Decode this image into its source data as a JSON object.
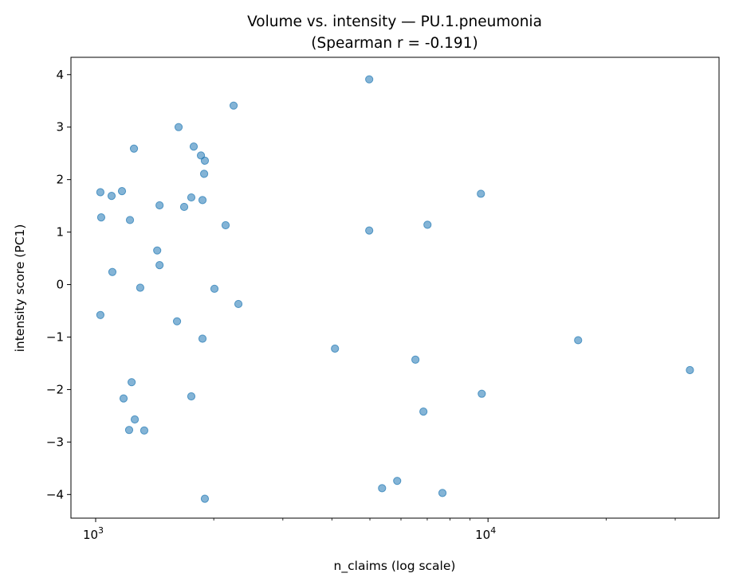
{
  "chart_data": {
    "type": "scatter",
    "title": "Volume vs. intensity — PU.1.pneumonia",
    "subtitle": "(Spearman r = -0.191)",
    "xlabel": "n_claims (log scale)",
    "ylabel": "intensity score (PC1)",
    "xscale": "log",
    "xlim": [
      865,
      38800
    ],
    "ylim": [
      -4.45,
      4.33
    ],
    "xticks": [
      {
        "value": 1000,
        "base": "10",
        "exp": "3"
      },
      {
        "value": 10000,
        "base": "10",
        "exp": "4"
      }
    ],
    "yticks": [
      4,
      3,
      2,
      1,
      0,
      -1,
      -2,
      -3,
      -4
    ],
    "ytick_labels": [
      "4",
      "3",
      "2",
      "1",
      "0",
      "−1",
      "−2",
      "−3",
      "−4"
    ],
    "grid": false,
    "color": "#1f77b4",
    "points": [
      [
        4980,
        3.91
      ],
      [
        2247,
        3.41
      ],
      [
        1627,
        3.0
      ],
      [
        1252,
        2.59
      ],
      [
        1778,
        2.63
      ],
      [
        1855,
        2.46
      ],
      [
        1898,
        2.36
      ],
      [
        1890,
        2.11
      ],
      [
        1028,
        1.76
      ],
      [
        1098,
        1.69
      ],
      [
        1167,
        1.78
      ],
      [
        1753,
        1.66
      ],
      [
        1872,
        1.61
      ],
      [
        1455,
        1.51
      ],
      [
        1681,
        1.48
      ],
      [
        1033,
        1.28
      ],
      [
        1223,
        1.23
      ],
      [
        2144,
        1.13
      ],
      [
        4980,
        1.03
      ],
      [
        7010,
        1.14
      ],
      [
        9590,
        1.73
      ],
      [
        1435,
        0.65
      ],
      [
        1455,
        0.37
      ],
      [
        1103,
        0.24
      ],
      [
        1299,
        -0.06
      ],
      [
        2008,
        -0.08
      ],
      [
        2311,
        -0.37
      ],
      [
        1028,
        -0.58
      ],
      [
        1612,
        -0.7
      ],
      [
        1872,
        -1.03
      ],
      [
        4073,
        -1.22
      ],
      [
        6531,
        -1.43
      ],
      [
        16970,
        -1.06
      ],
      [
        32700,
        -1.63
      ],
      [
        1235,
        -1.86
      ],
      [
        1753,
        -2.13
      ],
      [
        1178,
        -2.17
      ],
      [
        9640,
        -2.08
      ],
      [
        6845,
        -2.42
      ],
      [
        1258,
        -2.57
      ],
      [
        1217,
        -2.77
      ],
      [
        1330,
        -2.78
      ],
      [
        5370,
        -3.88
      ],
      [
        5868,
        -3.74
      ],
      [
        7654,
        -3.97
      ],
      [
        1898,
        -4.08
      ]
    ]
  }
}
